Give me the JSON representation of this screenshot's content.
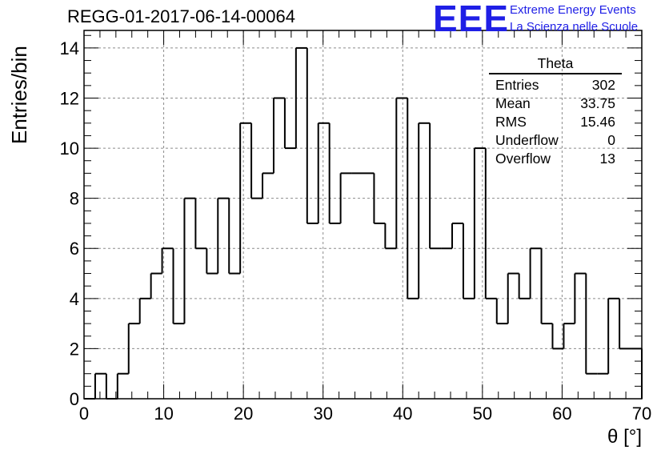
{
  "header": {
    "title": "REGG-01-2017-06-14-00064",
    "logo_text": "EEE",
    "logo_line1": "Extreme Energy Events",
    "logo_line2": "La Scienza nelle Scuole"
  },
  "stats_box": {
    "name": "Theta",
    "rows": [
      {
        "label": "Entries",
        "value": "302"
      },
      {
        "label": "Mean",
        "value": "33.75"
      },
      {
        "label": "RMS",
        "value": "15.46"
      },
      {
        "label": "Underflow",
        "value": "0"
      },
      {
        "label": "Overflow",
        "value": "13"
      }
    ]
  },
  "chart_data": {
    "type": "histogram",
    "title": "REGG-01-2017-06-14-00064",
    "xlabel": "θ [°]",
    "ylabel": "Entries/bin",
    "xlim": [
      0,
      70
    ],
    "ylim": [
      0,
      14.7
    ],
    "bin_width": 1.4,
    "x_ticks": [
      0,
      10,
      20,
      30,
      40,
      50,
      60,
      70
    ],
    "y_ticks": [
      0,
      2,
      4,
      6,
      8,
      10,
      12,
      14
    ],
    "grid": true,
    "bin_edges_start": 0,
    "values": [
      0,
      1,
      0,
      1,
      3,
      4,
      5,
      6,
      3,
      8,
      6,
      5,
      8,
      5,
      11,
      8,
      9,
      12,
      10,
      14,
      7,
      11,
      7,
      9,
      9,
      9,
      7,
      6,
      12,
      4,
      11,
      6,
      6,
      7,
      4,
      10,
      4,
      3,
      5,
      4,
      6,
      3,
      2,
      3,
      5,
      1,
      1,
      4,
      2,
      2
    ],
    "colors": {
      "line": "#000000",
      "grid": "#8c8c8c",
      "logo": "#1f1fe6"
    }
  }
}
